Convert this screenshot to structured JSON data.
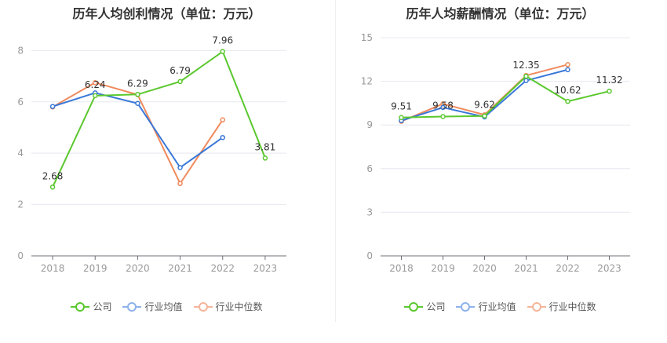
{
  "chart_data": [
    {
      "type": "line",
      "title": "历年人均创利情况（单位：万元）",
      "categories": [
        "2018",
        "2019",
        "2020",
        "2021",
        "2022",
        "2023"
      ],
      "ylim": [
        0,
        8.5
      ],
      "yticks": [
        0,
        2,
        4,
        6,
        8
      ],
      "grid": true,
      "legend_position": "bottom",
      "series": [
        {
          "name": "公司",
          "color": "#5ac82e",
          "values": [
            2.68,
            6.24,
            6.29,
            6.79,
            7.96,
            3.81
          ],
          "labels": [
            "2.68",
            "6.24",
            "6.29",
            "6.79",
            "7.96",
            "3.81"
          ]
        },
        {
          "name": "行业均值",
          "color": "#3a78d8",
          "values": [
            5.82,
            6.35,
            5.94,
            3.44,
            4.61,
            null
          ]
        },
        {
          "name": "行业中位数",
          "color": "#f08a5d",
          "values": [
            5.8,
            6.75,
            6.28,
            2.82,
            5.3,
            null
          ]
        }
      ]
    },
    {
      "type": "line",
      "title": "历年人均薪酬情况（单位：万元）",
      "categories": [
        "2018",
        "2019",
        "2020",
        "2021",
        "2022",
        "2023"
      ],
      "ylim": [
        0,
        15
      ],
      "yticks": [
        0,
        3,
        6,
        9,
        12,
        15
      ],
      "grid": true,
      "legend_position": "bottom",
      "series": [
        {
          "name": "公司",
          "color": "#5ac82e",
          "values": [
            9.51,
            9.58,
            9.62,
            12.35,
            10.62,
            11.32
          ],
          "labels": [
            "9.51",
            "9.58",
            "9.62",
            "12.35",
            "10.62",
            "11.32"
          ]
        },
        {
          "name": "行业均值",
          "color": "#3a78d8",
          "values": [
            9.3,
            10.2,
            9.55,
            12.05,
            12.8,
            null
          ]
        },
        {
          "name": "行业中位数",
          "color": "#f08a5d",
          "values": [
            9.25,
            10.45,
            9.7,
            12.4,
            13.15,
            null
          ]
        }
      ]
    }
  ]
}
